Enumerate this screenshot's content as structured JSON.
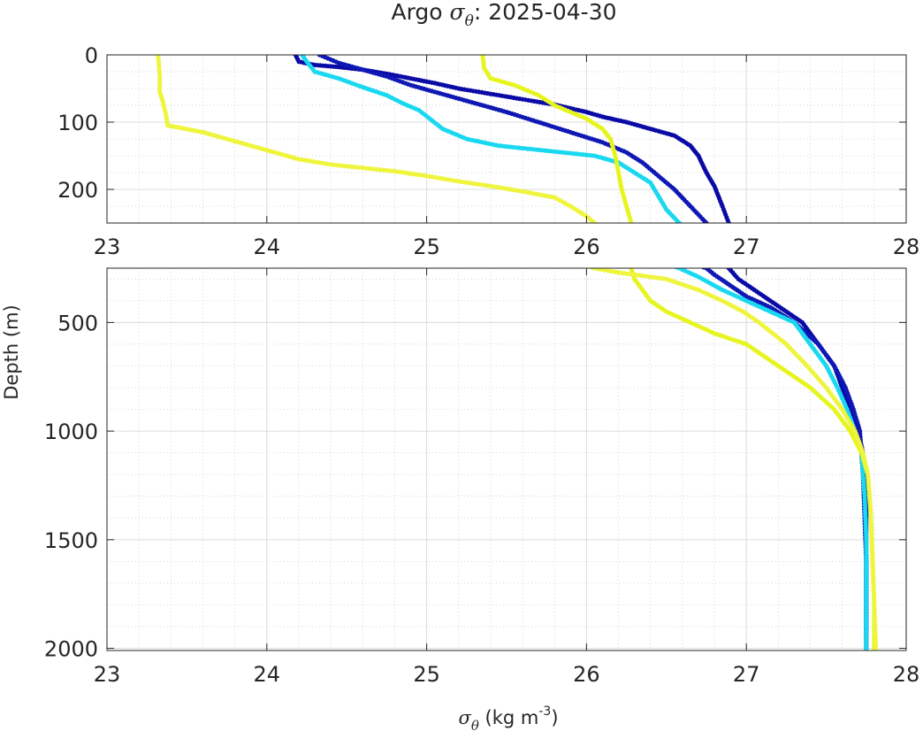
{
  "chart_data": {
    "type": "scatter",
    "title": {
      "prefix": "Argo ",
      "symbol": "σ",
      "subscript": "θ",
      "suffix": ": 2025-04-30"
    },
    "xlabel": {
      "symbol": "σ",
      "subscript": "θ",
      "unit_main": " (kg m",
      "unit_exp": "-3",
      "unit_end": ")"
    },
    "ylabel": "Depth (m)",
    "grid": true,
    "minor_grid": true,
    "panels": [
      {
        "name": "upper",
        "xlim": [
          23,
          28
        ],
        "ylim": [
          0,
          250
        ],
        "y_reversed": true,
        "xticks": [
          "23",
          "24",
          "25",
          "26",
          "27",
          "28"
        ],
        "yticks": [
          {
            "value": 0,
            "label": "0"
          },
          {
            "value": 100,
            "label": "100"
          },
          {
            "value": 200,
            "label": "200"
          }
        ]
      },
      {
        "name": "lower",
        "xlim": [
          23,
          28
        ],
        "ylim": [
          250,
          2010
        ],
        "y_reversed": true,
        "xticks": [
          "23",
          "24",
          "25",
          "26",
          "27",
          "28"
        ],
        "yticks": [
          {
            "value": 500,
            "label": "500"
          },
          {
            "value": 1000,
            "label": "1000"
          },
          {
            "value": 1500,
            "label": "1500"
          },
          {
            "value": 2000,
            "label": "2000"
          }
        ]
      }
    ],
    "series": [
      {
        "color": "#0a0aa6",
        "points": [
          [
            24.18,
            0
          ],
          [
            24.2,
            10
          ],
          [
            24.3,
            15
          ],
          [
            24.45,
            18
          ],
          [
            24.6,
            22
          ],
          [
            24.75,
            28
          ],
          [
            24.9,
            35
          ],
          [
            25.05,
            42
          ],
          [
            25.2,
            50
          ],
          [
            25.4,
            58
          ],
          [
            25.6,
            66
          ],
          [
            25.8,
            74
          ],
          [
            26.0,
            85
          ],
          [
            26.1,
            92
          ],
          [
            26.25,
            100
          ],
          [
            26.4,
            110
          ],
          [
            26.55,
            120
          ],
          [
            26.65,
            135
          ],
          [
            26.7,
            150
          ],
          [
            26.75,
            175
          ],
          [
            26.8,
            195
          ],
          [
            26.85,
            225
          ],
          [
            26.89,
            250
          ],
          [
            26.95,
            300
          ],
          [
            27.05,
            350
          ],
          [
            27.15,
            400
          ],
          [
            27.25,
            450
          ],
          [
            27.35,
            500
          ],
          [
            27.45,
            600
          ],
          [
            27.55,
            700
          ],
          [
            27.6,
            800
          ],
          [
            27.65,
            900
          ],
          [
            27.7,
            1000
          ],
          [
            27.73,
            1100
          ],
          [
            27.74,
            1200
          ],
          [
            27.75,
            1300
          ],
          [
            27.75,
            1500
          ],
          [
            27.75,
            1700
          ],
          [
            27.75,
            1900
          ],
          [
            27.75,
            2000
          ]
        ]
      },
      {
        "color": "#0f18b4",
        "points": [
          [
            24.33,
            0
          ],
          [
            24.45,
            12
          ],
          [
            24.6,
            22
          ],
          [
            24.75,
            32
          ],
          [
            24.9,
            45
          ],
          [
            25.05,
            55
          ],
          [
            25.2,
            65
          ],
          [
            25.35,
            75
          ],
          [
            25.5,
            85
          ],
          [
            25.7,
            100
          ],
          [
            25.9,
            115
          ],
          [
            26.1,
            130
          ],
          [
            26.25,
            145
          ],
          [
            26.35,
            160
          ],
          [
            26.45,
            180
          ],
          [
            26.55,
            200
          ],
          [
            26.65,
            225
          ],
          [
            26.75,
            250
          ],
          [
            26.8,
            280
          ],
          [
            26.9,
            330
          ],
          [
            27.0,
            380
          ],
          [
            27.15,
            430
          ],
          [
            27.3,
            500
          ],
          [
            27.45,
            600
          ],
          [
            27.55,
            700
          ],
          [
            27.62,
            800
          ],
          [
            27.67,
            900
          ],
          [
            27.71,
            1000
          ],
          [
            27.73,
            1200
          ],
          [
            27.74,
            1400
          ],
          [
            27.75,
            1600
          ],
          [
            27.75,
            1800
          ],
          [
            27.75,
            2000
          ]
        ]
      },
      {
        "color": "#19d8f0",
        "points": [
          [
            24.22,
            0
          ],
          [
            24.25,
            10
          ],
          [
            24.3,
            25
          ],
          [
            24.45,
            35
          ],
          [
            24.6,
            48
          ],
          [
            24.75,
            60
          ],
          [
            24.85,
            72
          ],
          [
            24.95,
            82
          ],
          [
            25.02,
            95
          ],
          [
            25.1,
            110
          ],
          [
            25.25,
            125
          ],
          [
            25.45,
            135
          ],
          [
            25.65,
            140
          ],
          [
            25.85,
            145
          ],
          [
            26.05,
            150
          ],
          [
            26.2,
            160
          ],
          [
            26.3,
            175
          ],
          [
            26.4,
            190
          ],
          [
            26.45,
            210
          ],
          [
            26.5,
            230
          ],
          [
            26.58,
            250
          ],
          [
            26.7,
            290
          ],
          [
            26.85,
            350
          ],
          [
            27.0,
            400
          ],
          [
            27.15,
            450
          ],
          [
            27.3,
            500
          ],
          [
            27.4,
            600
          ],
          [
            27.5,
            700
          ],
          [
            27.57,
            800
          ],
          [
            27.63,
            900
          ],
          [
            27.68,
            1000
          ],
          [
            27.72,
            1100
          ],
          [
            27.74,
            1300
          ],
          [
            27.75,
            1500
          ],
          [
            27.75,
            2000
          ]
        ]
      },
      {
        "color": "#e6f51e",
        "points": [
          [
            25.35,
            0
          ],
          [
            25.36,
            20
          ],
          [
            25.4,
            35
          ],
          [
            25.55,
            45
          ],
          [
            25.7,
            60
          ],
          [
            25.8,
            75
          ],
          [
            25.9,
            85
          ],
          [
            26.0,
            95
          ],
          [
            26.1,
            110
          ],
          [
            26.15,
            125
          ],
          [
            26.18,
            150
          ],
          [
            26.2,
            175
          ],
          [
            26.22,
            200
          ],
          [
            26.25,
            225
          ],
          [
            26.28,
            250
          ],
          [
            26.3,
            300
          ],
          [
            26.4,
            400
          ],
          [
            26.5,
            450
          ],
          [
            26.65,
            500
          ],
          [
            26.8,
            550
          ],
          [
            27.0,
            600
          ],
          [
            27.2,
            700
          ],
          [
            27.4,
            800
          ],
          [
            27.55,
            900
          ],
          [
            27.65,
            1000
          ],
          [
            27.72,
            1100
          ],
          [
            27.76,
            1200
          ],
          [
            27.78,
            1400
          ],
          [
            27.79,
            1600
          ],
          [
            27.8,
            1800
          ],
          [
            27.8,
            2000
          ]
        ]
      },
      {
        "color": "#eef53c",
        "points": [
          [
            23.32,
            0
          ],
          [
            23.33,
            30
          ],
          [
            23.33,
            55
          ],
          [
            23.35,
            70
          ],
          [
            23.37,
            90
          ],
          [
            23.38,
            105
          ],
          [
            23.45,
            108
          ],
          [
            23.6,
            115
          ],
          [
            23.75,
            125
          ],
          [
            23.9,
            135
          ],
          [
            24.05,
            145
          ],
          [
            24.2,
            155
          ],
          [
            24.4,
            163
          ],
          [
            24.6,
            168
          ],
          [
            24.8,
            173
          ],
          [
            25.0,
            180
          ],
          [
            25.2,
            188
          ],
          [
            25.4,
            195
          ],
          [
            25.6,
            203
          ],
          [
            25.8,
            212
          ],
          [
            25.9,
            225
          ],
          [
            26.0,
            240
          ],
          [
            26.05,
            250
          ],
          [
            26.2,
            270
          ],
          [
            26.5,
            300
          ],
          [
            26.7,
            350
          ],
          [
            26.85,
            400
          ],
          [
            26.98,
            450
          ],
          [
            27.08,
            500
          ],
          [
            27.25,
            600
          ],
          [
            27.38,
            700
          ],
          [
            27.5,
            800
          ],
          [
            27.6,
            900
          ],
          [
            27.68,
            1000
          ],
          [
            27.73,
            1100
          ],
          [
            27.76,
            1200
          ],
          [
            27.78,
            1400
          ],
          [
            27.79,
            1600
          ],
          [
            27.8,
            1800
          ],
          [
            27.81,
            2000
          ]
        ]
      }
    ]
  }
}
